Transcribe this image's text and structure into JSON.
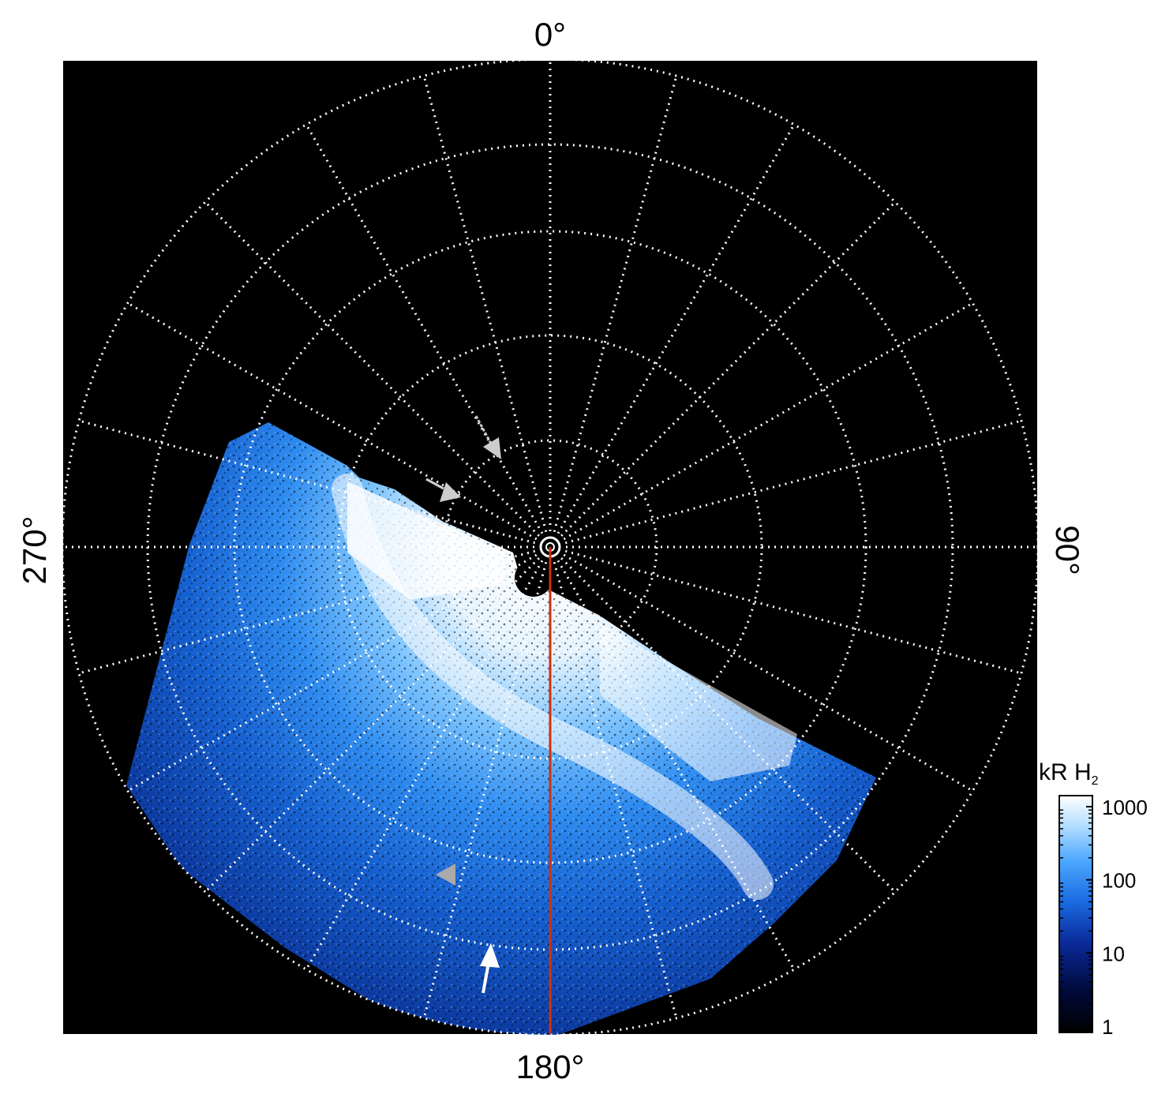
{
  "polar_labels": {
    "top": "0°",
    "bottom": "180°",
    "left": "270°",
    "right": "90°"
  },
  "colorbar": {
    "title_main": "kR H",
    "title_sub": "2",
    "scale": "log",
    "ticks": [
      "1000",
      "100",
      "10",
      "1"
    ],
    "colors": [
      "#000000",
      "#000a3c",
      "#0a2a9a",
      "#1a6ae0",
      "#4aa6ff",
      "#b8e0ff",
      "#ffffff"
    ]
  },
  "image": {
    "background": "#000000",
    "grid_color": "#ffffff",
    "meridian_line_color": "#d03010",
    "arrow_gray": "#cccccc",
    "arrow_white": "#ffffff"
  }
}
